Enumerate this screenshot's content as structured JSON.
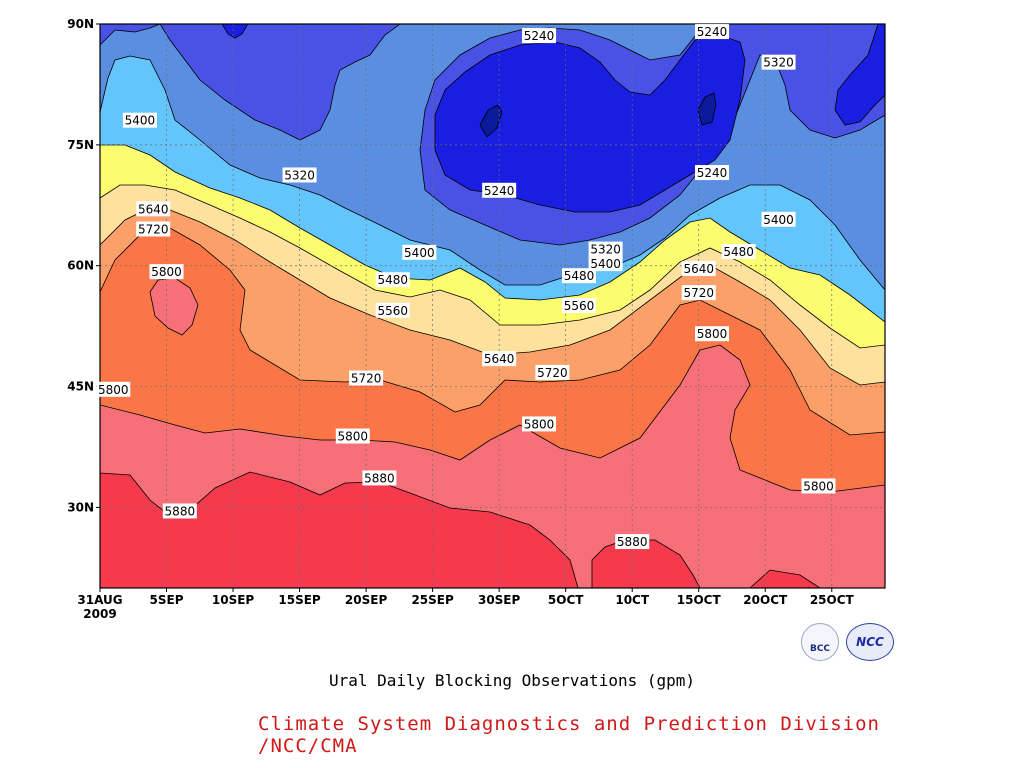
{
  "chart_data": {
    "type": "contour",
    "title": "Ural Daily Blocking Observations (gpm)",
    "credit": "Climate System Diagnostics and Prediction Division /NCC/CMA",
    "xlabel": "",
    "ylabel": "",
    "x_ticks": [
      "31AUG\n2009",
      "5SEP",
      "10SEP",
      "15SEP",
      "20SEP",
      "25SEP",
      "30SEP",
      "5OCT",
      "10CT",
      "15OCT",
      "20OCT",
      "25OCT"
    ],
    "x_range_days": [
      "2009-08-31",
      "2009-10-29"
    ],
    "y_ticks": [
      "30N",
      "45N",
      "60N",
      "75N",
      "90N"
    ],
    "ylim": [
      20,
      90
    ],
    "contour_levels": [
      5240,
      5320,
      5400,
      5480,
      5560,
      5640,
      5720,
      5800,
      5880
    ],
    "fill_colors": {
      "below_5240": "#0a1a9a",
      "5240": "#1a1ee0",
      "5320": "#4a52e6",
      "5400": "#5a8ee0",
      "5480": "#64c4fc",
      "5560": "#fcfc70",
      "5640": "#fde19c",
      "5720": "#fba068",
      "5800": "#fb7646",
      "5880": "#f76f78",
      "above_5880": "#f43a4c"
    },
    "contour_labels": [
      {
        "text": "5240",
        "date": "2009-10-03",
        "lat": 88.5
      },
      {
        "text": "5240",
        "date": "2009-10-16",
        "lat": 89
      },
      {
        "text": "5320",
        "date": "2009-10-21",
        "lat": 85.2
      },
      {
        "text": "5400",
        "date": "2009-09-03",
        "lat": 78
      },
      {
        "text": "5320",
        "date": "2009-09-15",
        "lat": 71.2
      },
      {
        "text": "5240",
        "date": "2009-09-30",
        "lat": 69.3
      },
      {
        "text": "5240",
        "date": "2009-10-16",
        "lat": 71.5
      },
      {
        "text": "5640",
        "date": "2009-09-04",
        "lat": 67
      },
      {
        "text": "5720",
        "date": "2009-09-04",
        "lat": 64.5
      },
      {
        "text": "5400",
        "date": "2009-10-21",
        "lat": 65.7
      },
      {
        "text": "5400",
        "date": "2009-09-24",
        "lat": 61.6
      },
      {
        "text": "5320",
        "date": "2009-10-08",
        "lat": 62
      },
      {
        "text": "5480",
        "date": "2009-10-18",
        "lat": 61.7
      },
      {
        "text": "5800",
        "date": "2009-09-05",
        "lat": 59.2
      },
      {
        "text": "5400",
        "date": "2009-10-08",
        "lat": 60.2
      },
      {
        "text": "5640",
        "date": "2009-10-15",
        "lat": 59.6
      },
      {
        "text": "5480",
        "date": "2009-09-22",
        "lat": 58.2
      },
      {
        "text": "5480",
        "date": "2009-10-06",
        "lat": 58.7
      },
      {
        "text": "5720",
        "date": "2009-10-15",
        "lat": 56.6
      },
      {
        "text": "5560",
        "date": "2009-10-06",
        "lat": 55
      },
      {
        "text": "5560",
        "date": "2009-09-22",
        "lat": 54.4
      },
      {
        "text": "5800",
        "date": "2009-10-16",
        "lat": 51.5
      },
      {
        "text": "5640",
        "date": "2009-09-30",
        "lat": 48.4
      },
      {
        "text": "5720",
        "date": "2009-10-04",
        "lat": 46.7
      },
      {
        "text": "5720",
        "date": "2009-09-20",
        "lat": 46
      },
      {
        "text": "5800",
        "date": "2009-09-01",
        "lat": 44.6
      },
      {
        "text": "5800",
        "date": "2009-10-03",
        "lat": 40.3
      },
      {
        "text": "5800",
        "date": "2009-09-19",
        "lat": 38.8
      },
      {
        "text": "5880",
        "date": "2009-09-21",
        "lat": 33.6
      },
      {
        "text": "5800",
        "date": "2009-10-24",
        "lat": 32.6
      },
      {
        "text": "5880",
        "date": "2009-09-06",
        "lat": 29.5
      },
      {
        "text": "5880",
        "date": "2009-10-10",
        "lat": 25.7
      }
    ],
    "grid": true
  }
}
